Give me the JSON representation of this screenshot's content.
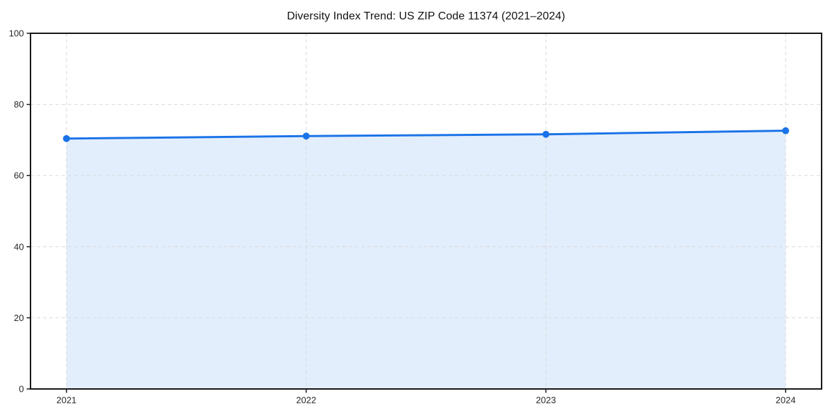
{
  "page": {
    "background": "#ffffff"
  },
  "chart_data": {
    "type": "area",
    "title": "Diversity Index Trend: US ZIP Code 11374 (2021–2024)",
    "xlabel": "",
    "ylabel": "",
    "categories": [
      "2021",
      "2022",
      "2023",
      "2024"
    ],
    "x": [
      2021,
      2022,
      2023,
      2024
    ],
    "series": [
      {
        "name": "Diversity Index",
        "values": [
          70.4,
          71.1,
          71.6,
          72.6
        ]
      }
    ],
    "ylim": [
      0,
      100
    ],
    "yticks": [
      0,
      20,
      40,
      60,
      80,
      100
    ],
    "ytick_labels": [
      "0",
      "20",
      "40",
      "60",
      "80",
      "100"
    ],
    "x_margin_frac": 0.05,
    "grid": true,
    "grid_style": "dashed",
    "legend_position": "none",
    "colors": {
      "line": "#1a73e8",
      "marker": "#1a73e8",
      "fill": "#1a73e8",
      "fill_opacity": 0.12,
      "grid": "#d9d9d9",
      "axis": "#141414",
      "tick_label": "#262626",
      "title": "#111111",
      "background": "#ffffff"
    }
  }
}
